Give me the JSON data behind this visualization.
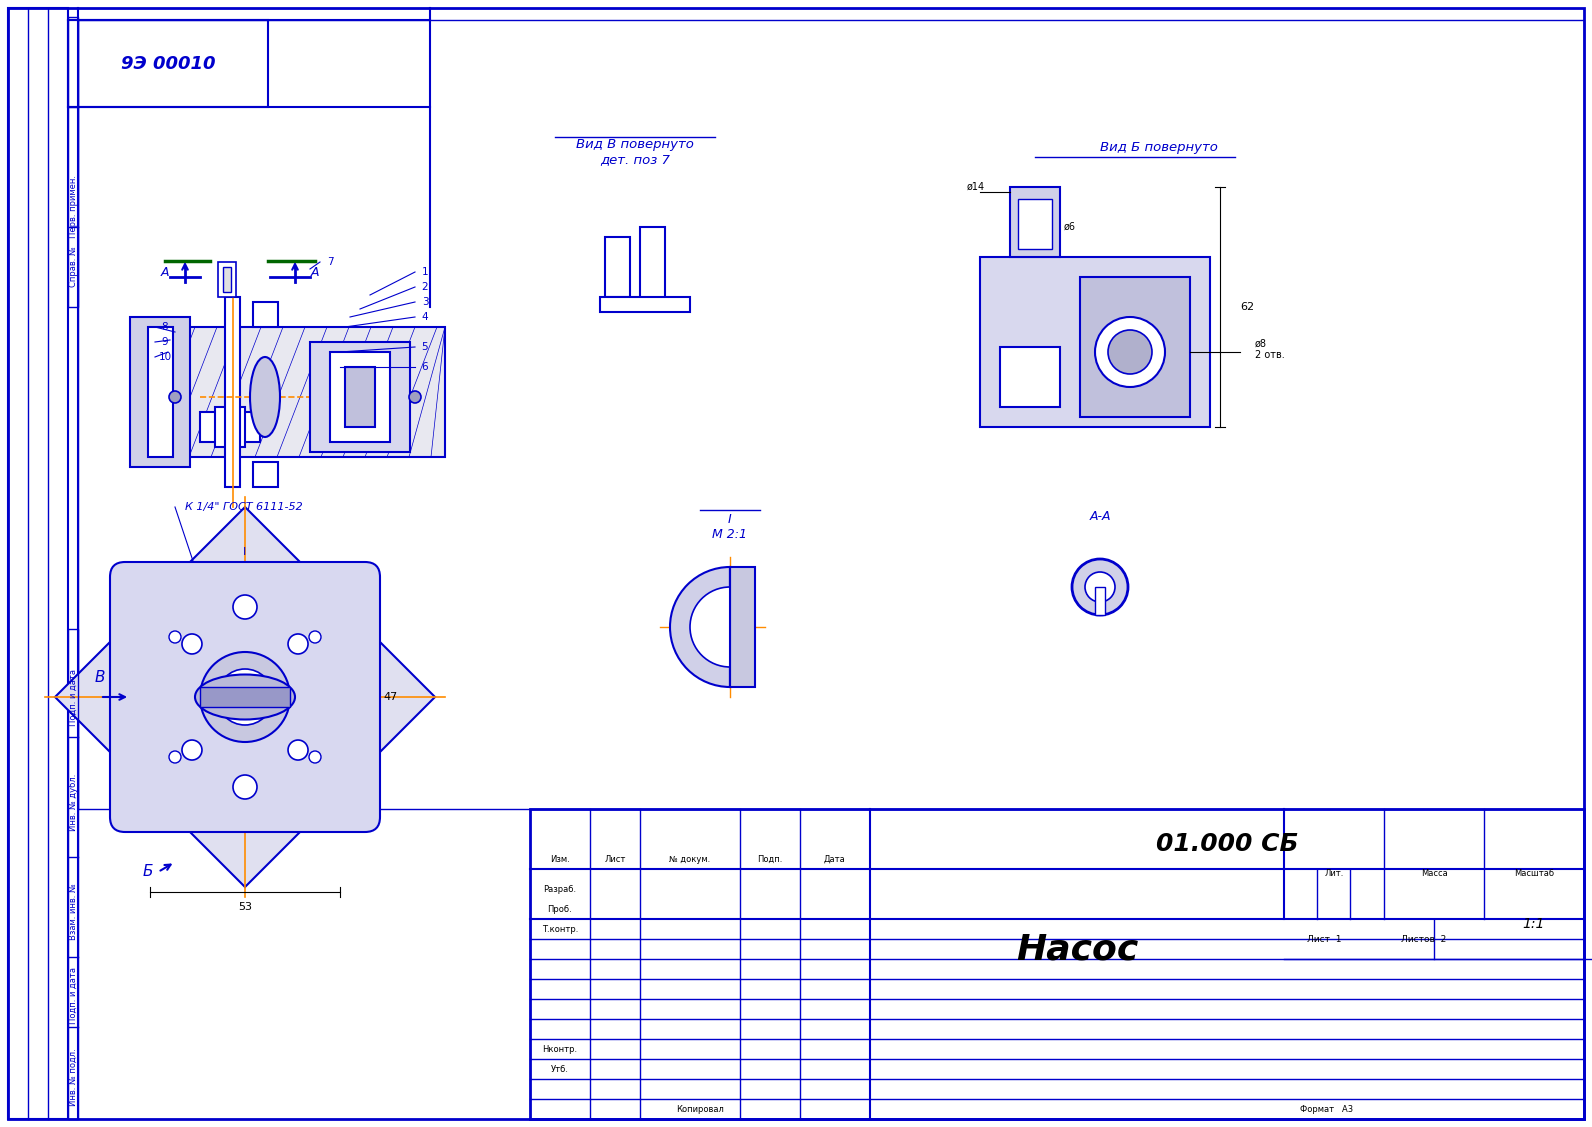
{
  "bg_color": "#ffffff",
  "border_color": "#0000cc",
  "line_color": "#0000cc",
  "drawing_color": "#0000cc",
  "dim_color": "#000000",
  "orange_color": "#ff8c00",
  "title_block": {
    "doc_number": "01.000 СБ",
    "title": "Насос",
    "scale": "1:1",
    "sheet": "1",
    "sheets": "2",
    "copied": "Копировал",
    "format": "Формат   А3",
    "col_headers": [
      "Изм.",
      "Лист",
      "№ докум.",
      "Подп.",
      "Дата"
    ],
    "row_labels": [
      "Разраб.",
      "Проб.",
      "Т.контр.",
      "",
      "Нконтр.",
      "Утб."
    ],
    "lit": "Лит.",
    "massa": "Масса",
    "masshtab": "Масштаб",
    "list_label": "Лист",
    "listov_label": "Листов"
  },
  "stamp_top": "9Э 00010",
  "view_b_label": "Вид Б повернуто",
  "view_v_label": "Вид В повернуто\nдет. поз 7",
  "section_aa_label": "А-А",
  "detail_label": "I\nМ 2:1",
  "annotation_k": "К 1/4\" ГОСТ 6111-52",
  "dim_47": "47",
  "dim_53": "53",
  "dim_62": "62",
  "dim_d8": "ø8\n2 отв.",
  "dim_d14": "ø14",
  "dim_d6": "ø6",
  "left_col_labels": [
    "Перв. примен.",
    "Справ. №",
    "Подп. и дата",
    "Инв. № дубл.",
    "Взам. инв. №",
    "Подп. и дата",
    "Инв. № подл."
  ]
}
